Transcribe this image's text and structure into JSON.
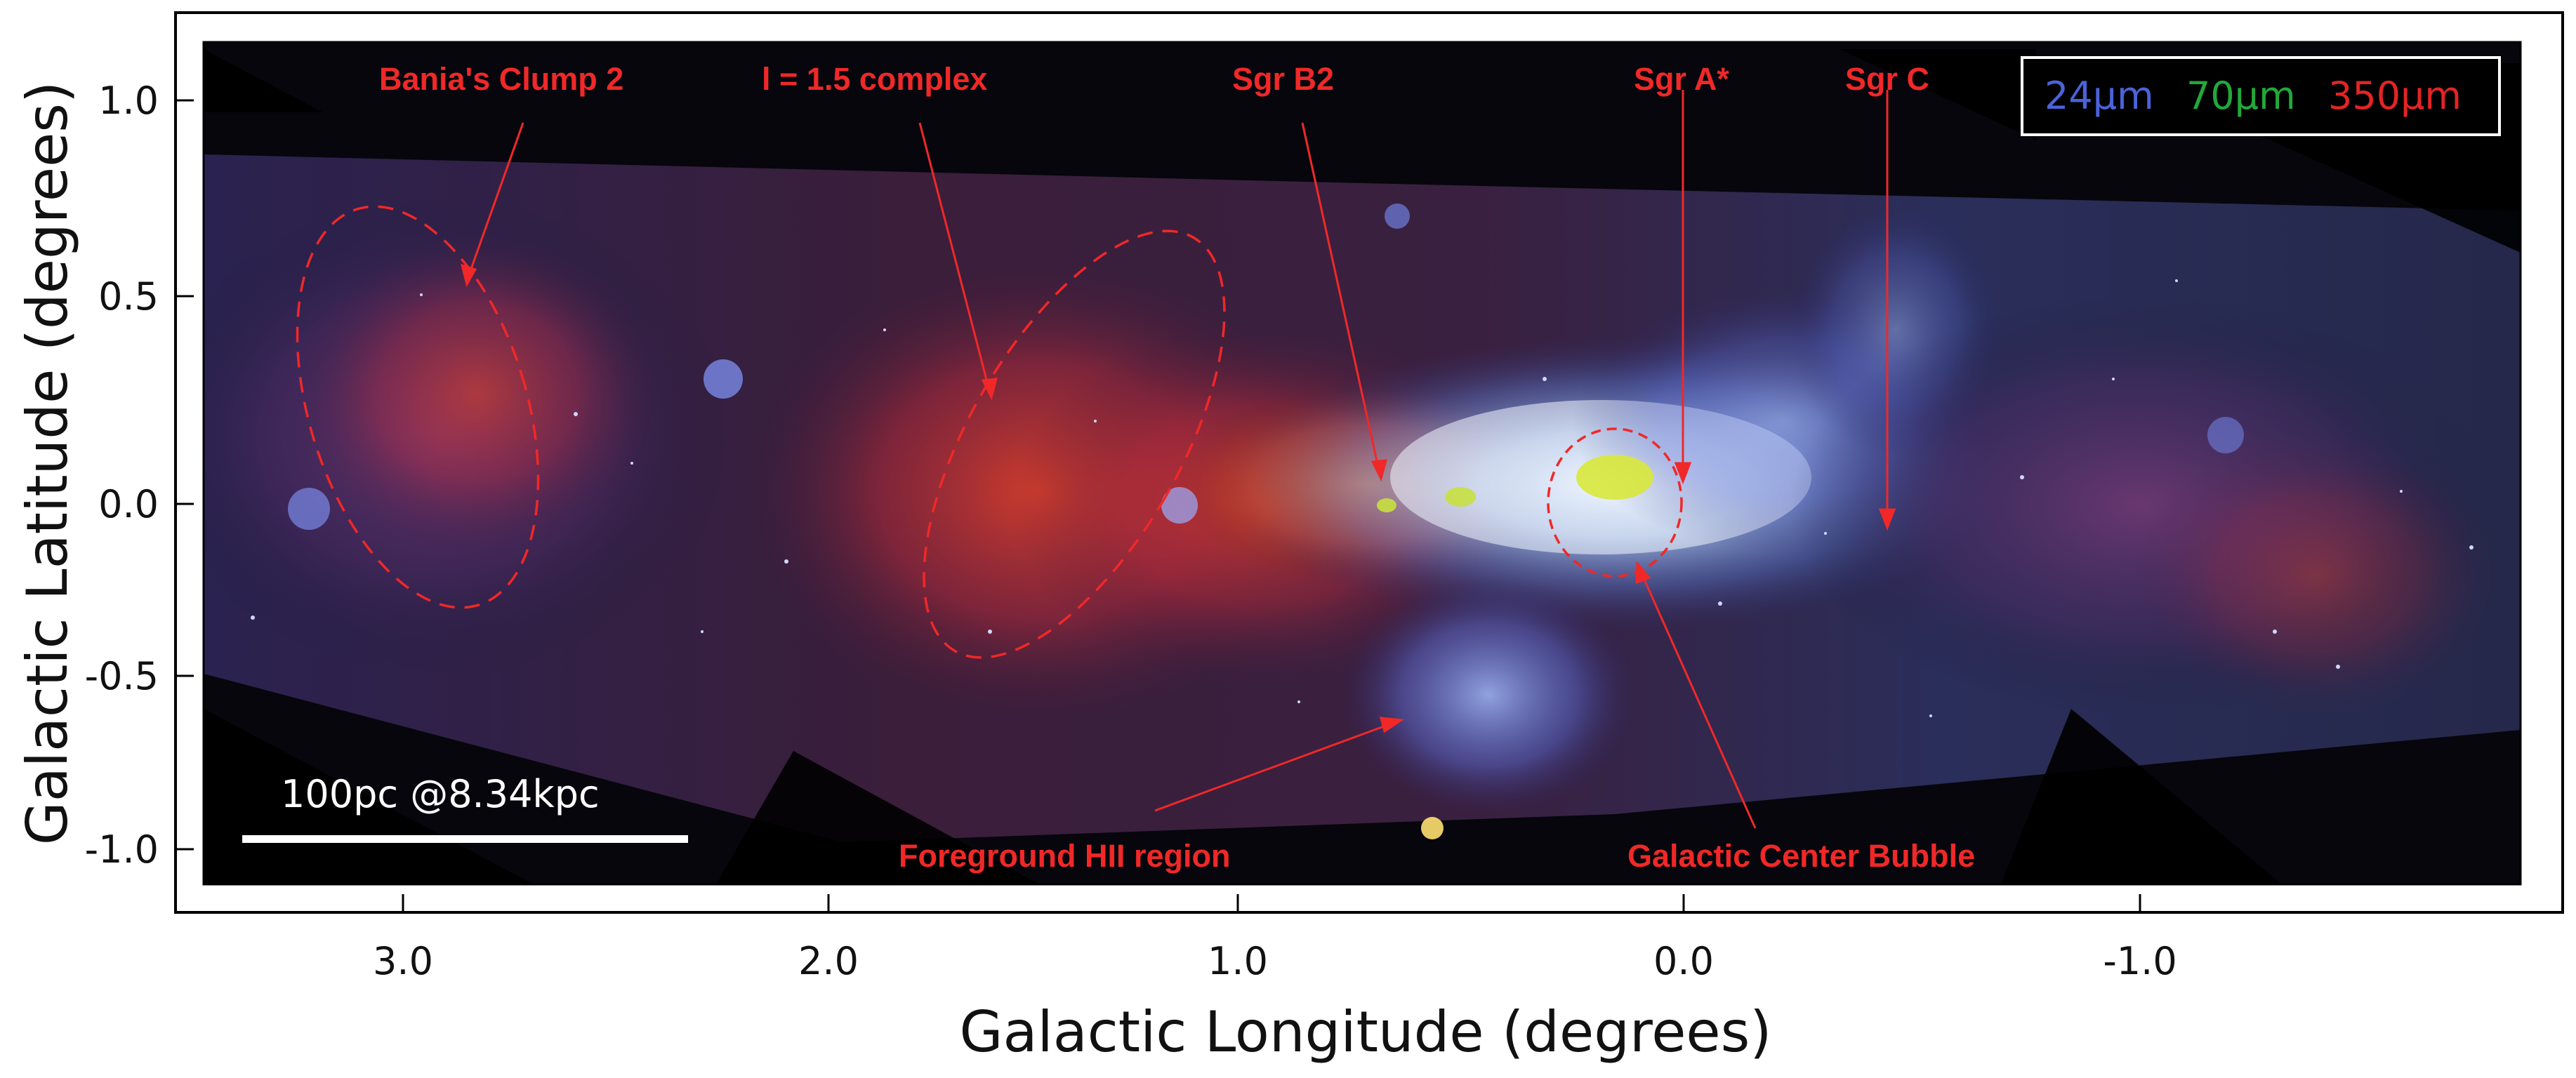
{
  "axes": {
    "xlabel": "Galactic Longitude (degrees)",
    "ylabel": "Galactic Latitude (degrees)",
    "x_ticks": [
      "3.0",
      "2.0",
      "1.0",
      "0.0",
      "-1.0"
    ],
    "y_ticks": [
      "1.0",
      "0.5",
      "0.0",
      "-0.5",
      "-1.0"
    ]
  },
  "legend": {
    "items": [
      {
        "label": "24μm",
        "color": "#4a63d8"
      },
      {
        "label": "70μm",
        "color": "#22a83a"
      },
      {
        "label": "350μm",
        "color": "#e32424"
      }
    ]
  },
  "scalebar": {
    "label": "100pc @8.34kpc"
  },
  "annotations": {
    "bania": "Bania's Clump 2",
    "l15": "l = 1.5 complex",
    "sgrb2": "Sgr B2",
    "sgra": "Sgr A*",
    "sgrc": "Sgr C",
    "hii": "Foreground HII region",
    "bubble": "Galactic Center Bubble"
  },
  "colors": {
    "annotation": "#f02828",
    "frame": "#000000"
  }
}
